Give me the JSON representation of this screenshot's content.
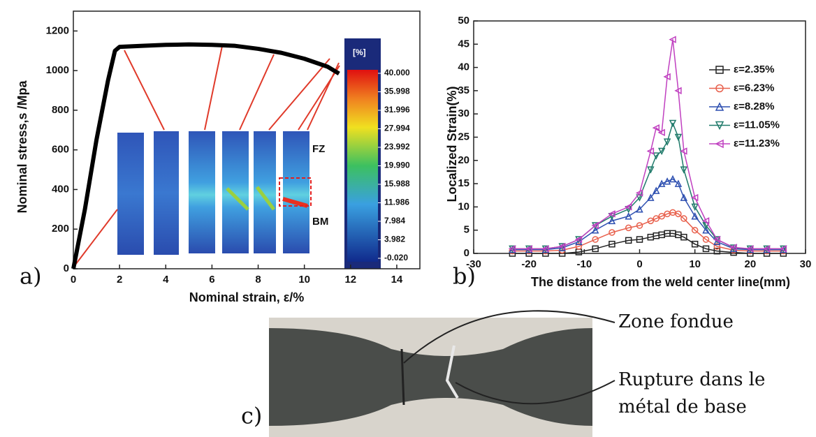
{
  "chart_data": [
    {
      "type": "line",
      "panel_label": "a)",
      "x_label": "Nominal strain, ε/%",
      "y_label": "Nominal stress,s /Mpa",
      "x": [
        0,
        0.5,
        1,
        1.5,
        1.8,
        2,
        3,
        4,
        5,
        6,
        7,
        8,
        9,
        10,
        11,
        11.5
      ],
      "series": [
        {
          "name": "stress",
          "color": "#000000",
          "values": [
            0,
            300,
            650,
            950,
            1100,
            1120,
            1125,
            1130,
            1132,
            1130,
            1125,
            1110,
            1090,
            1060,
            1020,
            985
          ]
        }
      ],
      "xlim": [
        0,
        15
      ],
      "xticks": [
        0,
        2,
        4,
        6,
        8,
        10,
        12,
        14
      ],
      "ylim": [
        0,
        1300
      ],
      "yticks": [
        0,
        200,
        400,
        600,
        800,
        1000,
        1200
      ],
      "annotations": [
        "FZ",
        "BM"
      ],
      "colorbar": {
        "title": "[%]",
        "ticks": [
          {
            "value": 40,
            "label": "40.000"
          },
          {
            "value": 35.998,
            "label": "35.998"
          },
          {
            "value": 31.996,
            "label": "31.996"
          },
          {
            "value": 27.994,
            "label": "27.994"
          },
          {
            "value": 23.992,
            "label": "23.992"
          },
          {
            "value": 19.99,
            "label": "19.990"
          },
          {
            "value": 15.988,
            "label": "15.988"
          },
          {
            "value": 11.986,
            "label": "11.986"
          },
          {
            "value": 7.984,
            "label": "7.984"
          },
          {
            "value": 3.982,
            "label": "3.982"
          },
          {
            "value": -0.02,
            "label": "-0.020"
          }
        ]
      }
    },
    {
      "type": "line",
      "panel_label": "b)",
      "x_label": "The distance from the weld center line(mm)",
      "y_label": "Localized Strain(%)",
      "x": [
        -23,
        -20,
        -17,
        -14,
        -11,
        -8,
        -5,
        -2,
        0,
        2,
        3,
        4,
        5,
        6,
        7,
        8,
        10,
        12,
        14,
        17,
        20,
        23,
        26
      ],
      "series": [
        {
          "name": "ε=2.35%",
          "color": "#222222",
          "marker": "square",
          "values": [
            0,
            0,
            0,
            0,
            0.3,
            1,
            2,
            2.8,
            3,
            3.5,
            3.8,
            4,
            4.3,
            4.3,
            4,
            3.5,
            2,
            1,
            0.5,
            0.2,
            0,
            0,
            0
          ]
        },
        {
          "name": "ε=6.23%",
          "color": "#e8604c",
          "marker": "circle",
          "values": [
            0.5,
            0.5,
            0.5,
            0.7,
            1.5,
            3,
            4.5,
            5.5,
            6,
            7,
            7.5,
            8,
            8.5,
            8.8,
            8.5,
            7.5,
            5,
            3,
            1.5,
            0.7,
            0.5,
            0.5,
            0.5
          ]
        },
        {
          "name": "ε=8.28%",
          "color": "#2d4fb0",
          "marker": "up",
          "values": [
            0.8,
            0.8,
            0.8,
            1.2,
            2.5,
            5,
            7,
            8,
            9.5,
            12,
            13.5,
            15,
            15.5,
            16,
            15,
            12,
            8,
            5,
            2.5,
            1,
            0.8,
            0.8,
            0.8
          ]
        },
        {
          "name": "ε=11.05%",
          "color": "#1f7a6a",
          "marker": "down",
          "values": [
            1,
            1,
            1,
            1.5,
            3,
            6,
            8,
            9.5,
            12,
            18,
            21,
            22,
            24,
            28,
            25,
            18,
            10,
            6,
            3,
            1.2,
            1,
            1,
            1
          ]
        },
        {
          "name": "ε=11.23%",
          "color": "#c040c0",
          "marker": "left",
          "values": [
            1,
            1,
            1,
            1.5,
            3,
            6,
            8.5,
            10,
            13,
            22,
            27,
            26,
            38,
            46,
            35,
            22,
            12,
            7,
            3,
            1.3,
            1,
            1,
            1
          ]
        }
      ],
      "xlim": [
        -30,
        30
      ],
      "xticks": [
        -30,
        -20,
        -10,
        0,
        10,
        20,
        30
      ],
      "ylim": [
        0,
        50
      ],
      "yticks": [
        0,
        5,
        10,
        15,
        20,
        25,
        30,
        35,
        40,
        45,
        50
      ]
    }
  ],
  "photo": {
    "panel_label": "c)",
    "labels": [
      "Zone fondue",
      "Rupture dans le",
      "métal de base"
    ]
  }
}
